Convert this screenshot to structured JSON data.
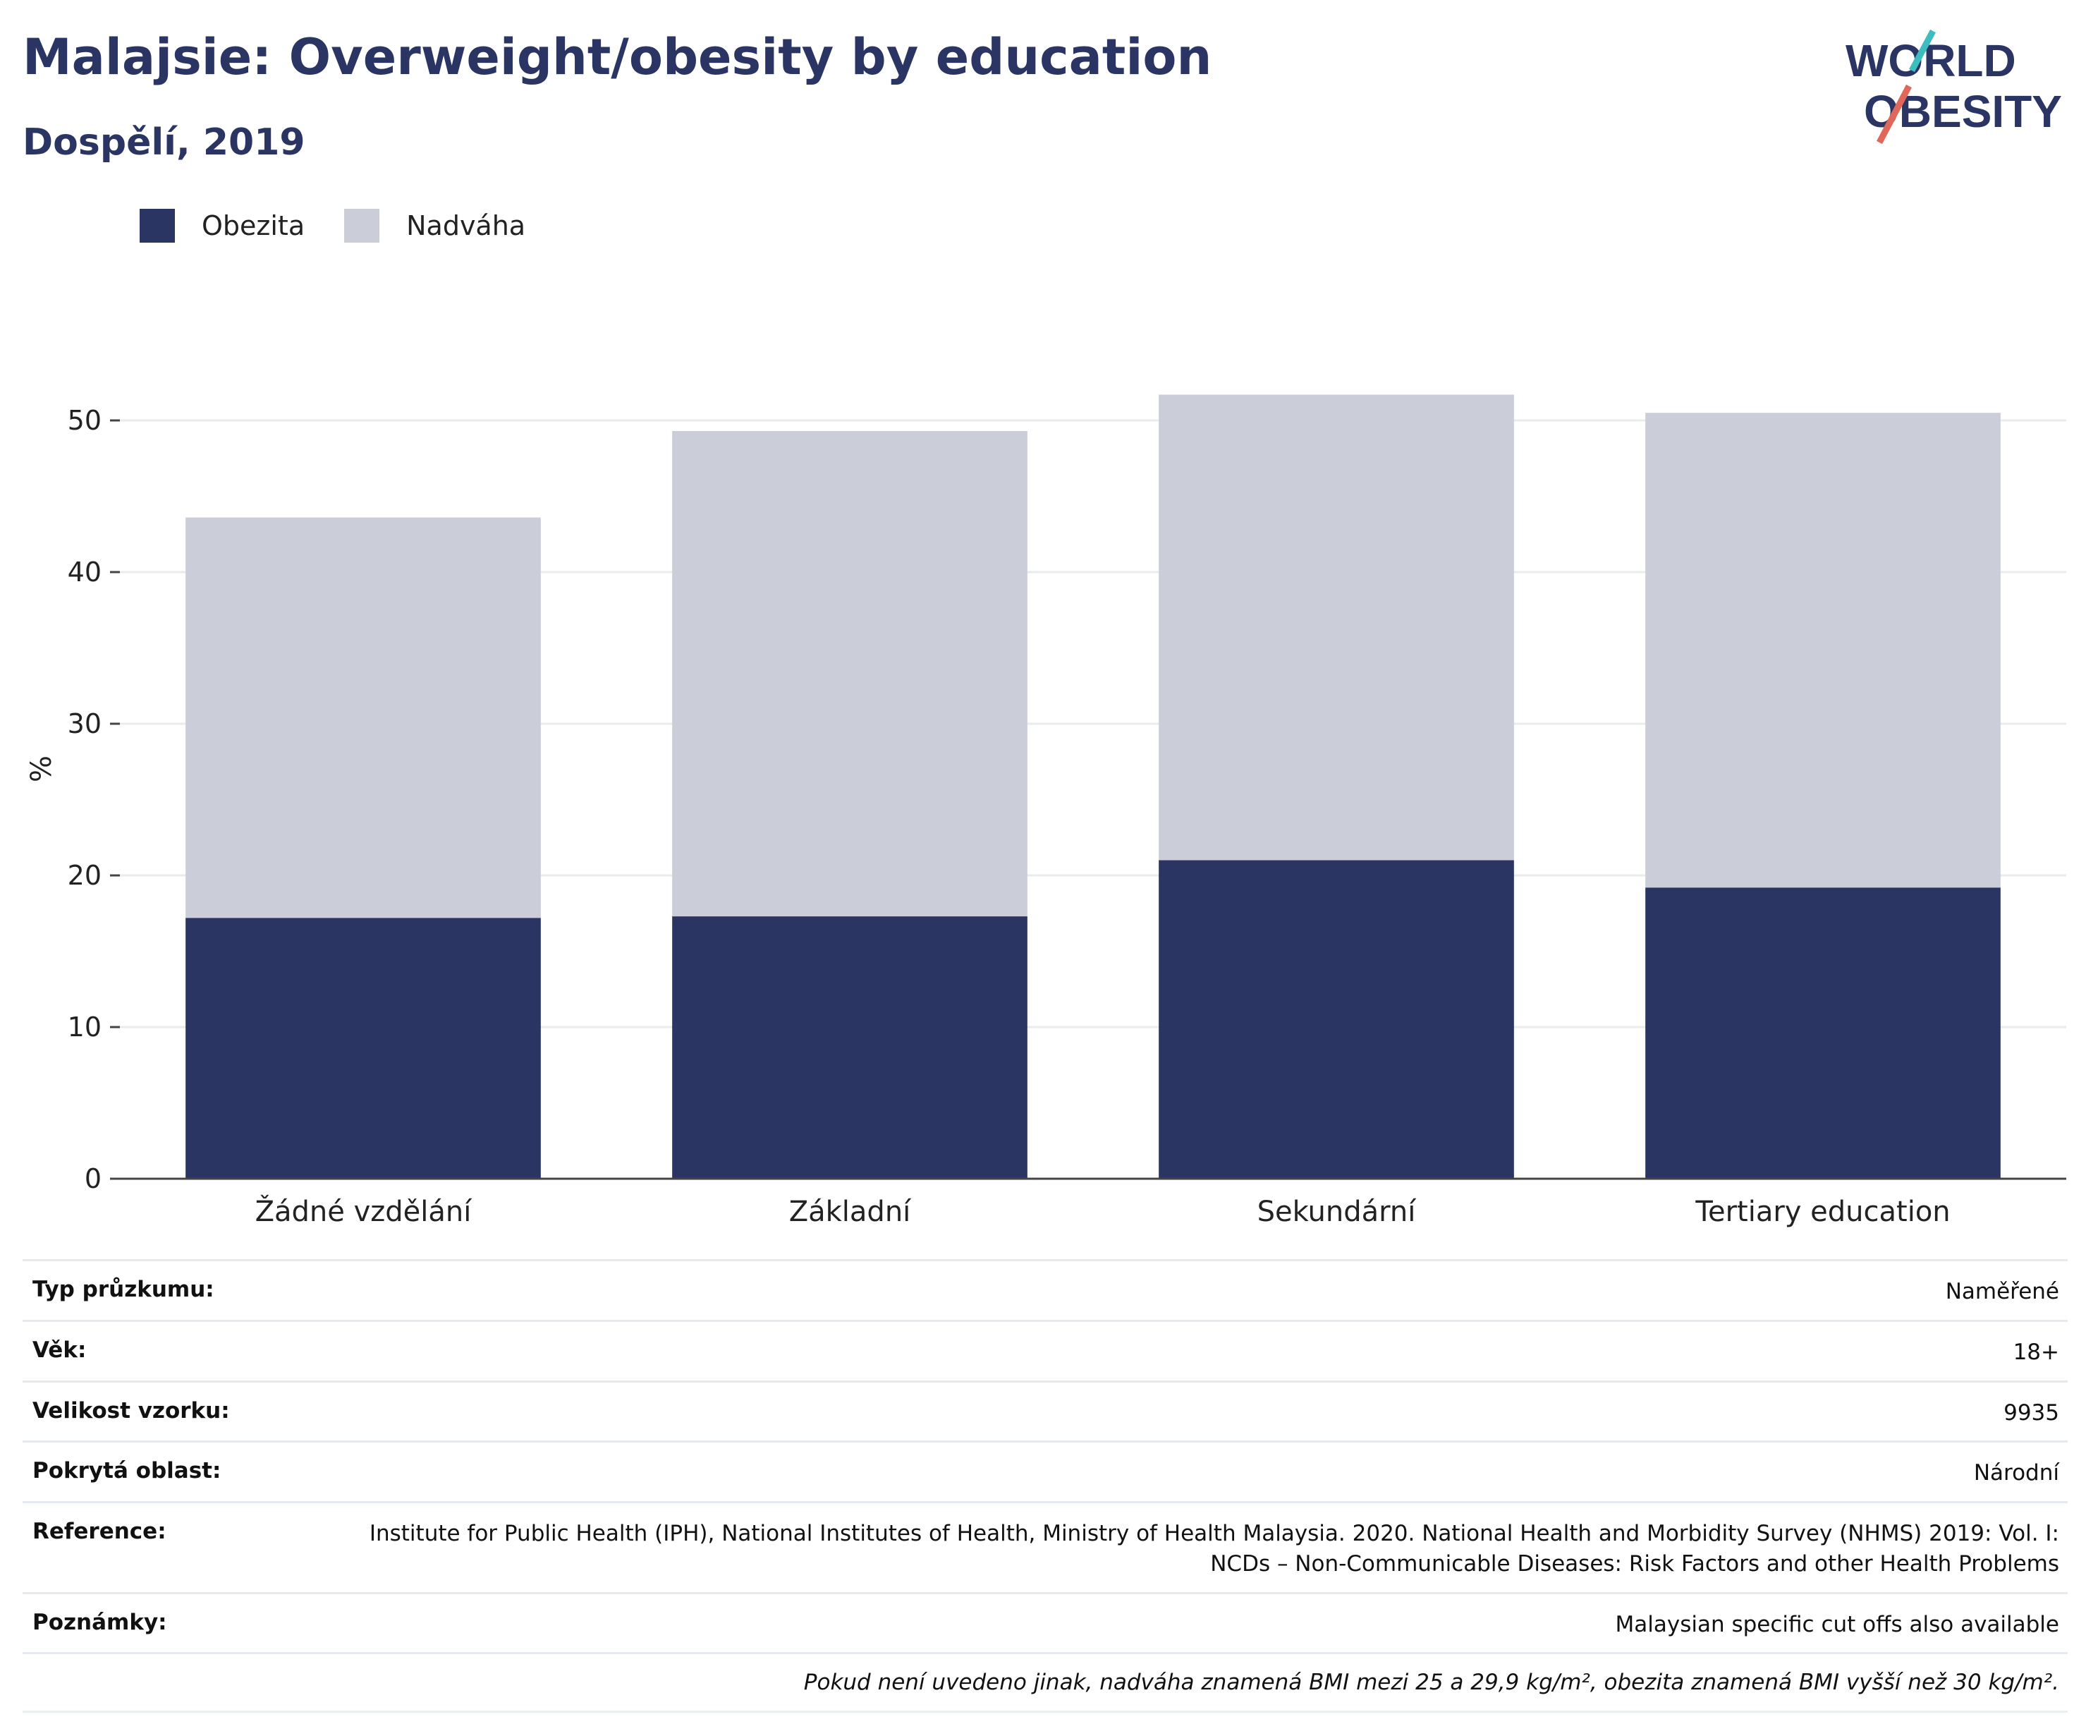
{
  "header": {
    "title": "Malajsie: Overweight/obesity by education",
    "subtitle": "Dospělí, 2019",
    "logo_line1": "WORLD",
    "logo_line2": "OBESITY"
  },
  "colors": {
    "obesity": "#2b3563",
    "overweight": "#cbcdd8",
    "accent_teal": "#3dbdbf",
    "accent_red": "#e0685a",
    "grid": "#e9ebef",
    "axis": "#444444"
  },
  "legend": [
    {
      "label": "Obezita",
      "color": "#2b3563"
    },
    {
      "label": "Nadváha",
      "color": "#cbcdd8"
    }
  ],
  "chart_data": {
    "type": "bar",
    "stacked": true,
    "categories": [
      "Žádné vzdělání",
      "Základní",
      "Sekundární",
      "Tertiary education"
    ],
    "series": [
      {
        "name": "Obezita",
        "values": [
          17.2,
          17.3,
          21.0,
          19.2
        ]
      },
      {
        "name": "Nadváha",
        "values": [
          26.4,
          32.0,
          30.7,
          31.3
        ]
      }
    ],
    "ylabel": "%",
    "yticks": [
      0,
      10,
      20,
      30,
      40,
      50
    ],
    "ylim": [
      0,
      55
    ],
    "grid": true,
    "legend_position": "top-left"
  },
  "info": [
    {
      "key": "Typ průzkumu:",
      "value": "Naměřené"
    },
    {
      "key": "Věk:",
      "value": "18+"
    },
    {
      "key": "Velikost vzorku:",
      "value": "9935"
    },
    {
      "key": "Pokrytá oblast:",
      "value": "Národní"
    },
    {
      "key": "Reference:",
      "value": "Institute for Public Health (IPH), National Institutes of Health, Ministry of Health Malaysia. 2020. National Health and Morbidity Survey (NHMS) 2019: Vol. I: NCDs – Non-Communicable Diseases: Risk Factors and other Health Problems"
    },
    {
      "key": "Poznámky:",
      "value": "Malaysian specific cut offs also available"
    }
  ],
  "footnote": "Pokud není uvedeno jinak, nadváha znamená BMI mezi 25 a 29,9 kg/m², obezita znamená BMI vyšší než 30 kg/m²."
}
